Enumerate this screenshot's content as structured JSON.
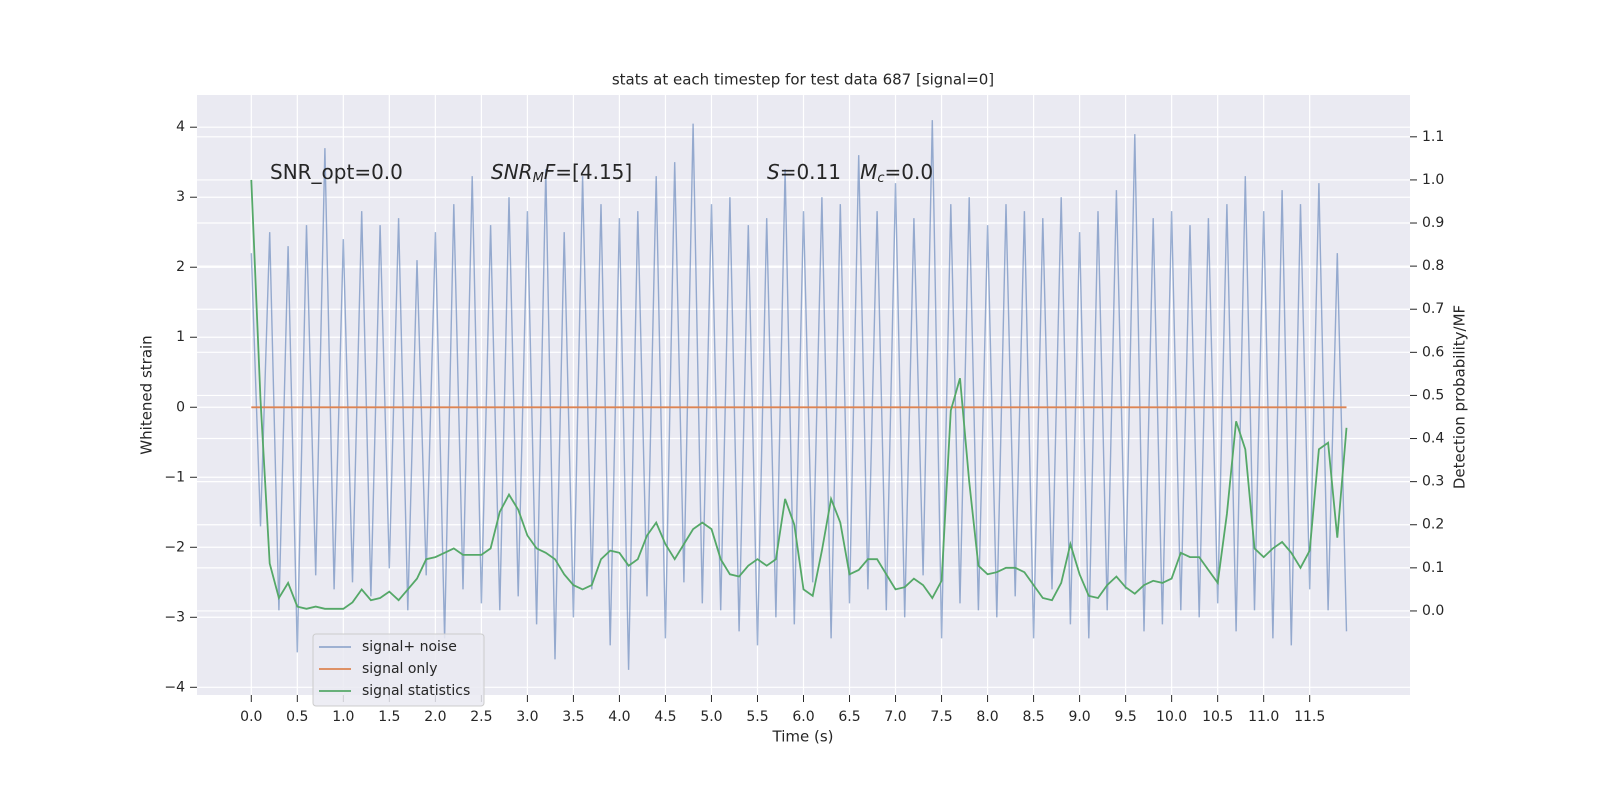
{
  "chart_data": {
    "type": "line",
    "title": "stats at each timestep for test data 687 [signal=0]",
    "xlabel": "Time (s)",
    "ylabel": "Whitened strain",
    "y2label": "Detection probability/MF",
    "grid": true,
    "legend": "lower left",
    "xlim": [
      -0.59,
      12.59
    ],
    "ylim": [
      -4.11,
      4.46
    ],
    "y2lim": [
      -0.195,
      1.197
    ],
    "xticks": [
      {
        "value": 0,
        "label": "0.0"
      },
      0.5,
      {
        "value": 1,
        "label": "1.0"
      },
      1.5,
      {
        "value": 2,
        "label": "2.0"
      },
      2.5,
      {
        "value": 3,
        "label": "3.0"
      },
      3.5,
      {
        "value": 4,
        "label": "4.0"
      },
      4.5,
      {
        "value": 5,
        "label": "5.0"
      },
      5.5,
      {
        "value": 6,
        "label": "6.0"
      },
      6.5,
      {
        "value": 7,
        "label": "7.0"
      },
      7.5,
      {
        "value": 8,
        "label": "8.0"
      },
      8.5,
      {
        "value": 9,
        "label": "9.0"
      },
      9.5,
      {
        "value": 10,
        "label": "10.0"
      },
      10.5,
      {
        "value": 11,
        "label": "11.0"
      },
      11.5
    ],
    "yticks": [
      {
        "value": -4,
        "label": "−4"
      },
      {
        "value": -3,
        "label": "−3"
      },
      {
        "value": -2,
        "label": "−2"
      },
      {
        "value": -1,
        "label": "−1"
      },
      0,
      1,
      2,
      3,
      4
    ],
    "y2ticks": [
      {
        "value": 0,
        "label": "0.0"
      },
      0.1,
      0.2,
      0.3,
      0.4,
      0.5,
      0.6,
      0.7,
      0.8,
      0.9,
      {
        "value": 1,
        "label": "1.0"
      },
      1.1
    ],
    "annotations": [
      [
        {
          "text": "SNR_opt=0.0",
          "style": "plain"
        }
      ],
      [
        {
          "text": "SNR",
          "style": "math"
        },
        {
          "text": "M",
          "style": "sub"
        },
        {
          "text": "F",
          "style": "math"
        },
        {
          "text": "=[4.15]",
          "style": "plain"
        }
      ],
      [
        {
          "text": "S",
          "style": "math"
        },
        {
          "text": "=0.11   ",
          "style": "plain"
        },
        {
          "text": "M",
          "style": "math"
        },
        {
          "text": "c",
          "style": "sub"
        },
        {
          "text": "=0.0",
          "style": "plain"
        }
      ]
    ],
    "x": [
      0,
      0.1,
      0.2,
      0.3,
      0.4,
      0.5,
      0.6,
      0.7,
      0.8,
      0.9,
      1,
      1.1,
      1.2,
      1.3,
      1.4,
      1.5,
      1.6,
      1.7,
      1.8,
      1.9,
      2,
      2.1,
      2.2,
      2.3,
      2.4,
      2.5,
      2.6,
      2.7,
      2.8,
      2.9,
      3,
      3.1,
      3.2,
      3.3,
      3.4,
      3.5,
      3.6,
      3.7,
      3.8,
      3.9,
      4,
      4.1,
      4.2,
      4.3,
      4.4,
      4.5,
      4.6,
      4.7,
      4.8,
      4.9,
      5,
      5.1,
      5.2,
      5.3,
      5.4,
      5.5,
      5.6,
      5.7,
      5.8,
      5.9,
      6,
      6.1,
      6.2,
      6.3,
      6.4,
      6.5,
      6.6,
      6.7,
      6.8,
      6.9,
      7,
      7.1,
      7.2,
      7.3,
      7.4,
      7.5,
      7.6,
      7.7,
      7.8,
      7.9,
      8,
      8.1,
      8.2,
      8.3,
      8.4,
      8.5,
      8.6,
      8.7,
      8.8,
      8.9,
      9,
      9.1,
      9.2,
      9.3,
      9.4,
      9.5,
      9.6,
      9.7,
      9.8,
      9.9,
      10,
      10.1,
      10.2,
      10.3,
      10.4,
      10.5,
      10.6,
      10.7,
      10.8,
      10.9,
      11,
      11.1,
      11.2,
      11.3,
      11.4,
      11.5,
      11.6,
      11.7,
      11.8,
      11.9
    ],
    "series": [
      {
        "name": "signal+ noise",
        "color": "#4c72b0",
        "axis": "y",
        "values": [
          2.2,
          -1.7,
          2.5,
          -2.9,
          2.3,
          -3.5,
          2.6,
          -2.4,
          3.7,
          -2.6,
          2.4,
          -2.5,
          2.8,
          -2.7,
          2.6,
          -2.3,
          2.7,
          -2.9,
          2.1,
          -2.4,
          2.5,
          -3.3,
          2.9,
          -2.6,
          3.3,
          -2.8,
          2.6,
          -2.9,
          3.0,
          -2.7,
          2.8,
          -3.1,
          3.4,
          -3.6,
          2.5,
          -3.0,
          3.3,
          -2.6,
          2.9,
          -3.4,
          2.7,
          -3.75,
          2.8,
          -2.7,
          3.3,
          -3.3,
          3.5,
          -2.5,
          4.05,
          -2.8,
          2.9,
          -2.9,
          3.0,
          -3.2,
          2.6,
          -3.4,
          2.7,
          -3.0,
          3.4,
          -3.1,
          2.8,
          -2.5,
          3.0,
          -3.3,
          2.9,
          -2.8,
          3.6,
          -2.6,
          2.8,
          -2.9,
          3.2,
          -3.0,
          2.7,
          -2.4,
          4.1,
          -3.3,
          2.9,
          -2.8,
          3.0,
          -2.9,
          2.6,
          -3.0,
          2.9,
          -2.7,
          2.8,
          -3.3,
          2.7,
          -2.6,
          3.0,
          -3.1,
          2.5,
          -3.3,
          2.8,
          -2.9,
          3.1,
          -2.6,
          3.9,
          -3.2,
          2.7,
          -3.1,
          2.8,
          -2.9,
          2.6,
          -3.0,
          2.7,
          -2.8,
          2.9,
          -3.2,
          3.3,
          -2.9,
          2.8,
          -3.3,
          3.1,
          -3.4,
          2.9,
          -2.6,
          3.2,
          -2.9,
          2.2,
          -3.2
        ]
      },
      {
        "name": "signal only",
        "color": "#dd8452",
        "axis": "y",
        "values": [
          0,
          0,
          0,
          0,
          0,
          0,
          0,
          0,
          0,
          0,
          0,
          0,
          0,
          0,
          0,
          0,
          0,
          0,
          0,
          0,
          0,
          0,
          0,
          0,
          0,
          0,
          0,
          0,
          0,
          0,
          0,
          0,
          0,
          0,
          0,
          0,
          0,
          0,
          0,
          0,
          0,
          0,
          0,
          0,
          0,
          0,
          0,
          0,
          0,
          0,
          0,
          0,
          0,
          0,
          0,
          0,
          0,
          0,
          0,
          0,
          0,
          0,
          0,
          0,
          0,
          0,
          0,
          0,
          0,
          0,
          0,
          0,
          0,
          0,
          0,
          0,
          0,
          0,
          0,
          0,
          0,
          0,
          0,
          0,
          0,
          0,
          0,
          0,
          0,
          0,
          0,
          0,
          0,
          0,
          0,
          0,
          0,
          0,
          0,
          0,
          0,
          0,
          0,
          0,
          0,
          0,
          0,
          0,
          0,
          0,
          0,
          0,
          0,
          0,
          0,
          0,
          0,
          0,
          0,
          0
        ]
      },
      {
        "name": "signal statistics",
        "color": "#55a868",
        "axis": "y2",
        "values": [
          1.0,
          0.49,
          0.11,
          0.03,
          0.065,
          0.01,
          0.005,
          0.01,
          0.005,
          0.005,
          0.005,
          0.02,
          0.05,
          0.025,
          0.03,
          0.045,
          0.025,
          0.05,
          0.075,
          0.12,
          0.125,
          0.135,
          0.145,
          0.13,
          0.13,
          0.13,
          0.145,
          0.23,
          0.27,
          0.235,
          0.175,
          0.145,
          0.135,
          0.12,
          0.085,
          0.06,
          0.05,
          0.06,
          0.12,
          0.14,
          0.135,
          0.105,
          0.12,
          0.175,
          0.205,
          0.155,
          0.12,
          0.155,
          0.19,
          0.205,
          0.19,
          0.12,
          0.085,
          0.08,
          0.105,
          0.12,
          0.105,
          0.12,
          0.26,
          0.2,
          0.05,
          0.035,
          0.14,
          0.26,
          0.205,
          0.085,
          0.095,
          0.12,
          0.12,
          0.085,
          0.05,
          0.055,
          0.075,
          0.06,
          0.03,
          0.07,
          0.465,
          0.54,
          0.3,
          0.105,
          0.085,
          0.09,
          0.1,
          0.1,
          0.09,
          0.06,
          0.03,
          0.025,
          0.065,
          0.155,
          0.085,
          0.035,
          0.03,
          0.06,
          0.08,
          0.055,
          0.04,
          0.06,
          0.07,
          0.065,
          0.075,
          0.135,
          0.125,
          0.125,
          0.095,
          0.065,
          0.225,
          0.44,
          0.375,
          0.145,
          0.125,
          0.145,
          0.16,
          0.135,
          0.1,
          0.14,
          0.375,
          0.39,
          0.17,
          0.425
        ]
      }
    ]
  }
}
